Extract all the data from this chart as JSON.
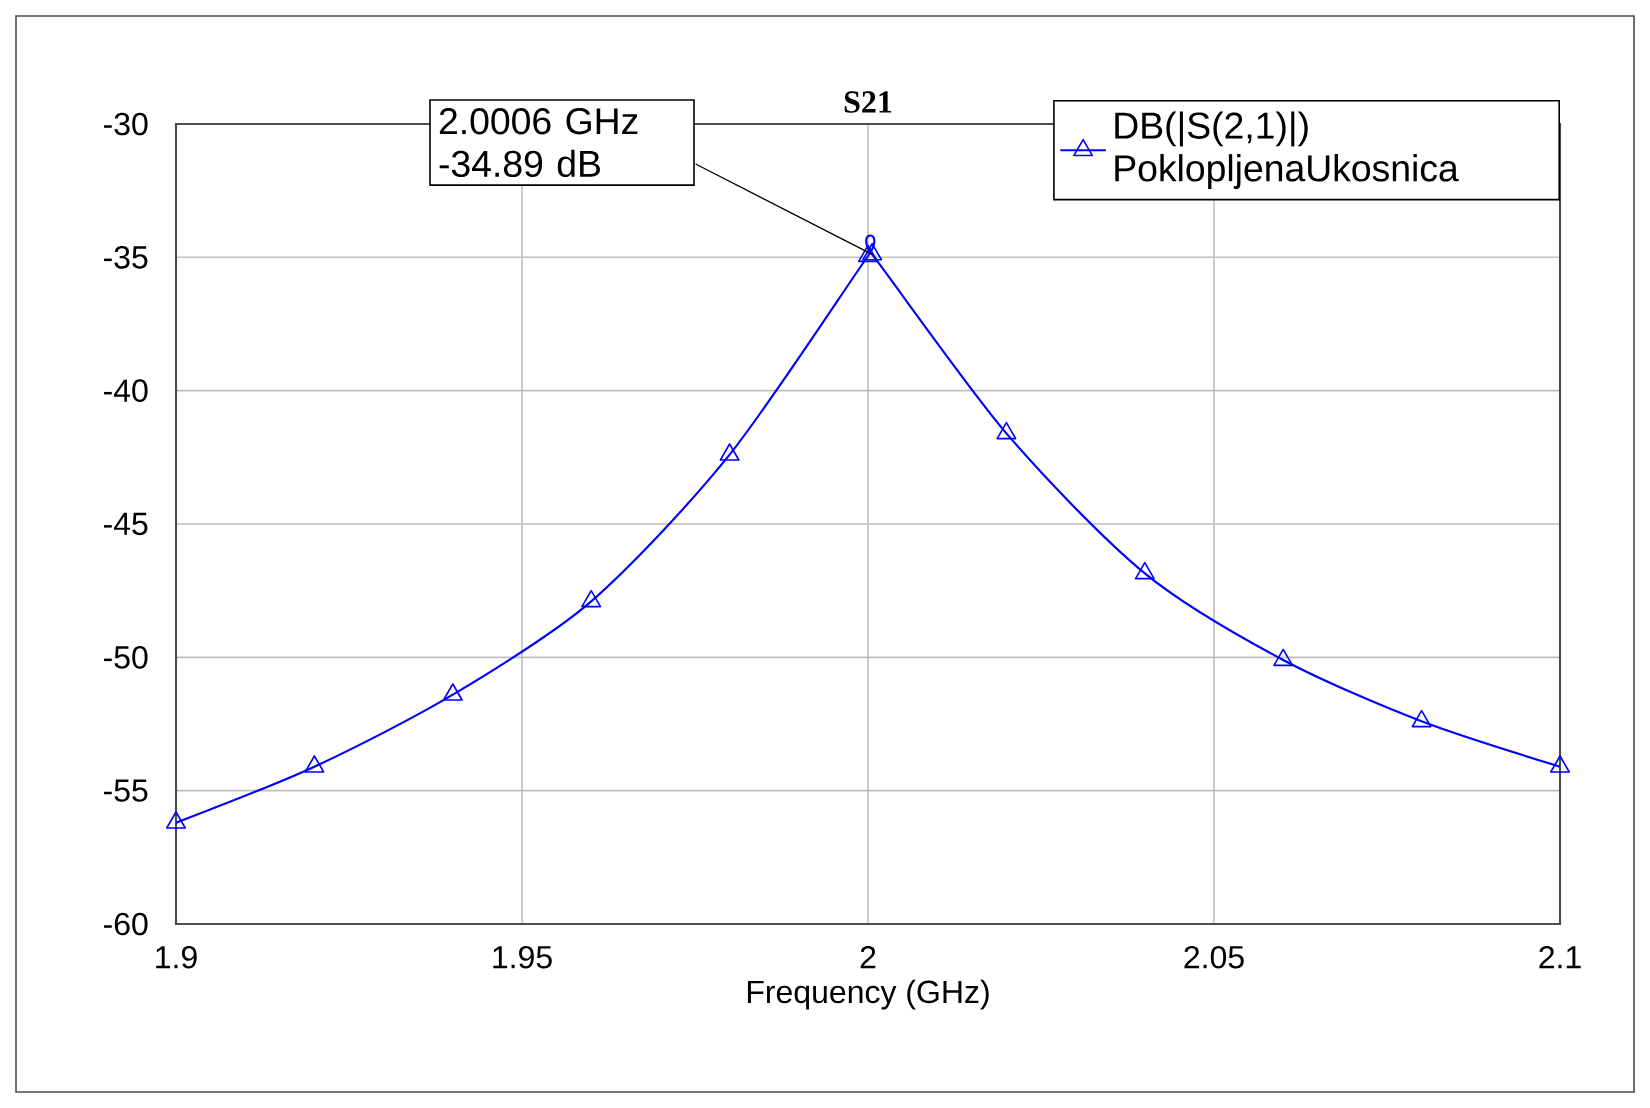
{
  "chart_data": {
    "type": "line",
    "title": "S21",
    "xlabel": "Frequency (GHz)",
    "x": [
      1.9,
      1.92,
      1.94,
      1.96,
      1.98,
      2.0,
      2.0006,
      2.02,
      2.04,
      2.06,
      2.08,
      2.1
    ],
    "series": [
      {
        "name": "DB(|S(2,1)|) PoklopljenaUkosnica",
        "color": "#0000ff",
        "values": [
          -56.2,
          -54.1,
          -51.4,
          -47.9,
          -42.4,
          -34.95,
          -34.89,
          -41.6,
          -46.85,
          -50.1,
          -52.4,
          -54.1
        ]
      }
    ],
    "annotations": [
      "2.0006 GHz -34.89 dB"
    ],
    "xlim": [
      1.9,
      2.1
    ],
    "ylim": [
      -60,
      -30
    ],
    "xticks": [
      1.9,
      1.95,
      2,
      2.05,
      2.1
    ],
    "yticks": [
      -60,
      -55,
      -50,
      -45,
      -40,
      -35,
      -30
    ],
    "grid": true,
    "legend": "top right",
    "marker": "triangle",
    "line_style": "solid"
  }
}
